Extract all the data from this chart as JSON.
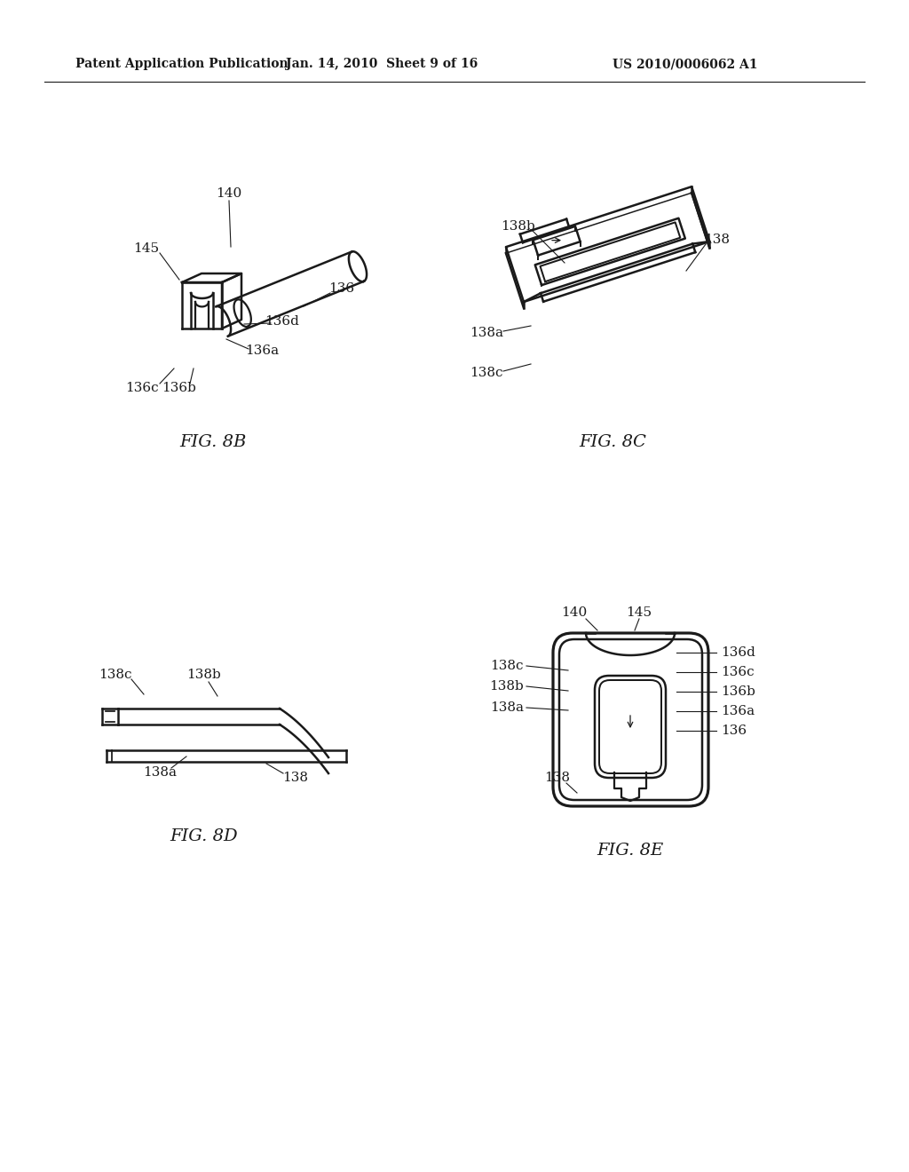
{
  "background_color": "#ffffff",
  "text_color": "#000000",
  "header_left": "Patent Application Publication",
  "header_center": "Jan. 14, 2010  Sheet 9 of 16",
  "header_right": "US 2010/0006062 A1",
  "line_color": "#1a1a1a",
  "line_width": 1.8,
  "label_fontsize": 11,
  "header_fontsize": 10,
  "fig_label_fontsize": 14
}
